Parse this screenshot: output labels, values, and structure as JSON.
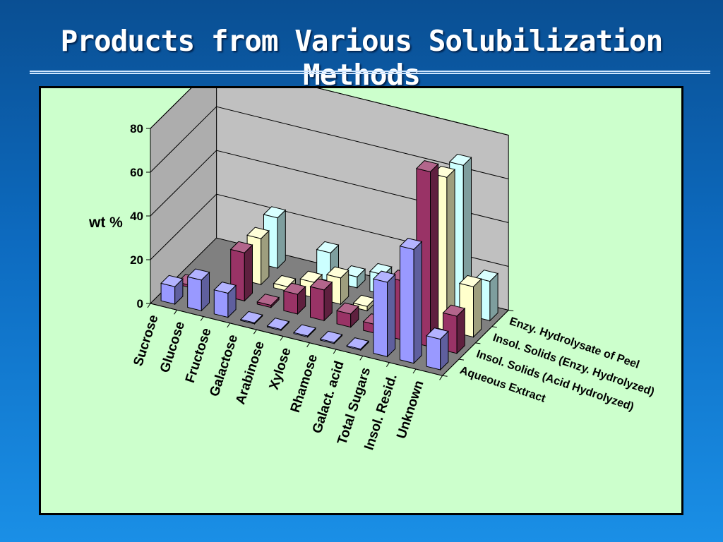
{
  "title": "Products from Various Solubilization Methods",
  "chart_data": {
    "type": "bar",
    "subtype": "3d-bar",
    "title": "",
    "ylabel": "wt %",
    "xlabel": "",
    "ylim": [
      0,
      80
    ],
    "yticks": [
      0,
      20,
      40,
      60,
      80
    ],
    "grid": true,
    "categories": [
      "Sucrose",
      "Glucose",
      "Fructose",
      "Galactose",
      "Arabinose",
      "Xylose",
      "Rhamose",
      "Galact. acid",
      "Total Sugars",
      "Insol. Resid.",
      "Unknown"
    ],
    "series": [
      {
        "name": "Aqueous Extract",
        "color": "#9999ff",
        "values": [
          8,
          14,
          11,
          0.5,
          0.5,
          0.5,
          0.5,
          0.5,
          34,
          52,
          14
        ]
      },
      {
        "name": "Insol. Solids (Acid Hydrolyzed)",
        "color": "#993366",
        "values": [
          1,
          0,
          22,
          1,
          9,
          14,
          6,
          4,
          27,
          80,
          17
        ]
      },
      {
        "name": "Insol. Solids (Enzy. Hydrolyzed)",
        "color": "#ffffcc",
        "values": [
          0,
          0,
          21,
          2,
          7,
          12,
          2,
          2,
          31,
          70,
          23
        ]
      },
      {
        "name": "Enzy. Hydrolysate of Peel",
        "color": "#ccffff",
        "values": [
          0,
          0,
          23,
          0,
          13,
          5,
          9,
          2,
          0,
          68,
          18
        ]
      }
    ],
    "legend": "right-depth-axis"
  },
  "colors": {
    "panel_background": "#ccffcc",
    "wall": "#c0c0c0",
    "floor": "#808080"
  }
}
